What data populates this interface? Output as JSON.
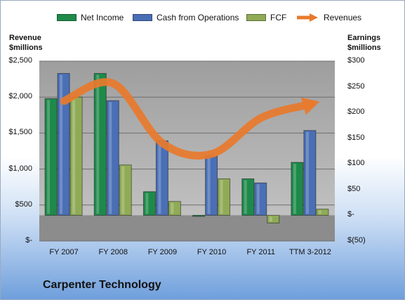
{
  "chart_data": {
    "type": "bar",
    "title": "Carpenter Technology",
    "categories": [
      "FY 2007",
      "FY 2008",
      "FY 2009",
      "FY 2010",
      "FY 2011",
      "TTM 3-2012"
    ],
    "left_axis": {
      "label": "Revenue\n$millions",
      "ylim": [
        0,
        2500
      ],
      "ticks": [
        0,
        500,
        1000,
        1500,
        2000,
        2500
      ],
      "tick_labels": [
        "$-",
        "$500",
        "$1,000",
        "$1,500",
        "$2,000",
        "$2,500"
      ]
    },
    "right_axis": {
      "label": "Earnings\n$millions",
      "ylim": [
        -50,
        300
      ],
      "ticks": [
        -50,
        0,
        50,
        100,
        150,
        200,
        250,
        300
      ],
      "tick_labels": [
        "$(50)",
        "$-",
        "$50",
        "$100",
        "$150",
        "$200",
        "$250",
        "$300"
      ]
    },
    "series": [
      {
        "name": "Net Income",
        "type": "bar",
        "axis": "right",
        "color": "#1e8a4a",
        "values": [
          227,
          276,
          46,
          -2,
          71,
          103
        ]
      },
      {
        "name": "Cash from Operations",
        "type": "bar",
        "axis": "right",
        "color": "#4a6fb5",
        "values": [
          276,
          223,
          145,
          115,
          63,
          165
        ]
      },
      {
        "name": "FCF",
        "type": "bar",
        "axis": "right",
        "color": "#8fab56",
        "values": [
          230,
          98,
          27,
          71,
          -15,
          12
        ]
      },
      {
        "name": "Revenues",
        "type": "line",
        "axis": "left",
        "color": "#e87a2c",
        "values": [
          1945,
          2190,
          1360,
          1210,
          1710,
          1900
        ]
      }
    ],
    "grid": true,
    "legend": "top"
  }
}
